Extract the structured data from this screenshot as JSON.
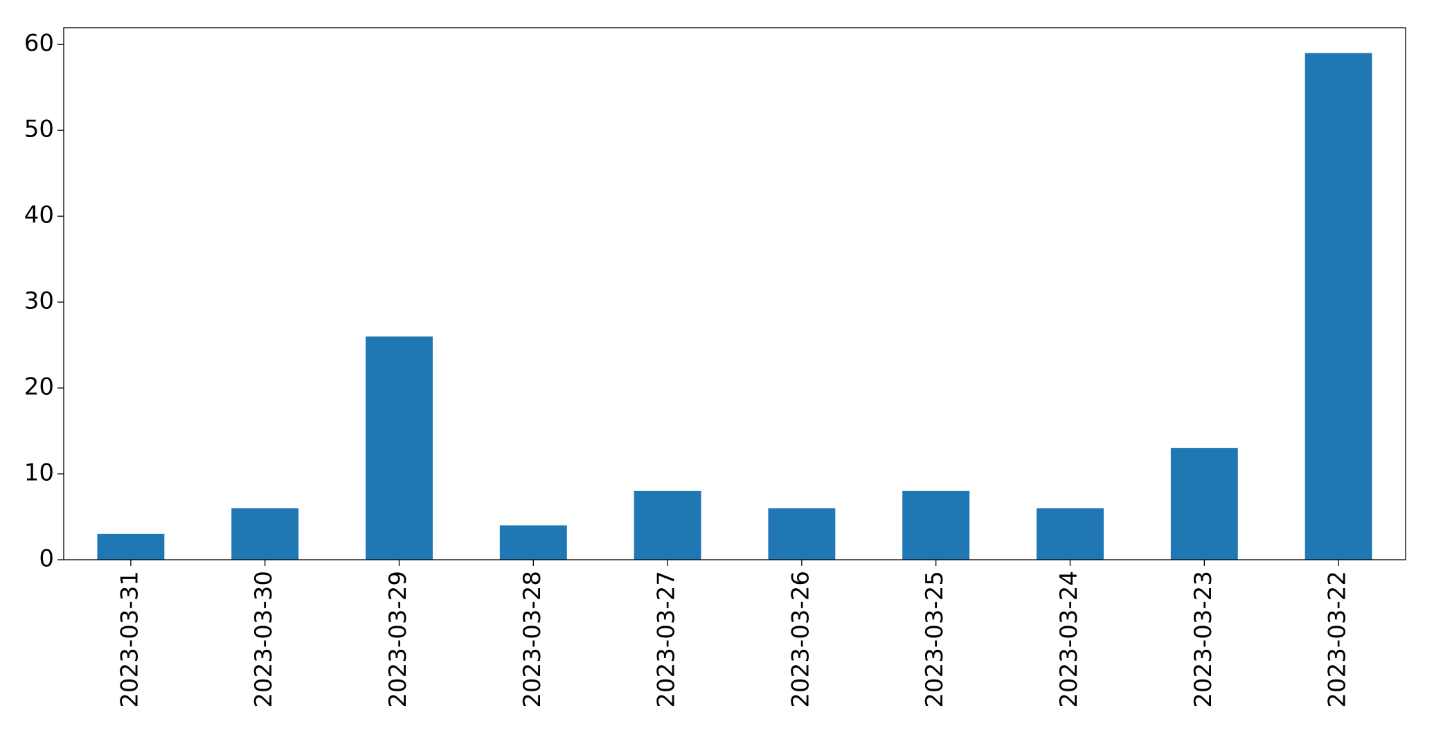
{
  "chart_data": {
    "type": "bar",
    "categories": [
      "2023-03-31",
      "2023-03-30",
      "2023-03-29",
      "2023-03-28",
      "2023-03-27",
      "2023-03-26",
      "2023-03-25",
      "2023-03-24",
      "2023-03-23",
      "2023-03-22"
    ],
    "values": [
      3,
      6,
      26,
      4,
      8,
      6,
      8,
      6,
      13,
      59
    ],
    "color": "#1f77b4",
    "ylim": [
      0,
      61.95
    ],
    "yticks": [
      0,
      10,
      20,
      30,
      40,
      50,
      60
    ],
    "grid": false
  }
}
